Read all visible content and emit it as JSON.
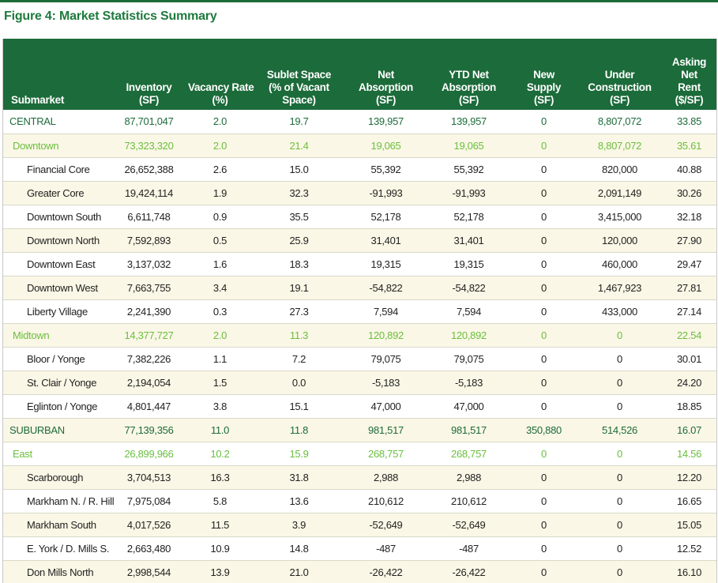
{
  "figure": {
    "title": "Figure 4: Market Statistics Summary"
  },
  "colors": {
    "header_bg": "#1c6b3a",
    "title": "#1e7a3e",
    "region_text": "#1c6b3a",
    "submarket_text": "#6abf3e",
    "shaded_row": "#fbf7e6"
  },
  "table": {
    "columns": [
      {
        "lines": [
          "Submarket"
        ]
      },
      {
        "lines": [
          "Inventory",
          "(SF)"
        ]
      },
      {
        "lines": [
          "Vacancy Rate",
          "(%)"
        ]
      },
      {
        "lines": [
          "Sublet Space",
          "(% of Vacant",
          "Space)"
        ]
      },
      {
        "lines": [
          "Net",
          "Absorption",
          "(SF)"
        ]
      },
      {
        "lines": [
          "YTD Net",
          "Absorption",
          "(SF)"
        ]
      },
      {
        "lines": [
          "New",
          "Supply",
          "(SF)"
        ]
      },
      {
        "lines": [
          "Under",
          "Construction",
          "(SF)"
        ]
      },
      {
        "lines": [
          "Asking",
          "Net",
          "Rent",
          "($/SF)"
        ]
      }
    ],
    "rows": [
      {
        "level": 0,
        "cells": [
          "CENTRAL",
          "87,701,047",
          "2.0",
          "19.7",
          "139,957",
          "139,957",
          "0",
          "8,807,072",
          "33.85"
        ]
      },
      {
        "level": 1,
        "cells": [
          "Downtown",
          "73,323,320",
          "2.0",
          "21.4",
          "19,065",
          "19,065",
          "0",
          "8,807,072",
          "35.61"
        ]
      },
      {
        "level": 2,
        "cells": [
          "Financial Core",
          "26,652,388",
          "2.6",
          "15.0",
          "55,392",
          "55,392",
          "0",
          "820,000",
          "40.88"
        ]
      },
      {
        "level": 2,
        "cells": [
          "Greater Core",
          "19,424,114",
          "1.9",
          "32.3",
          "-91,993",
          "-91,993",
          "0",
          "2,091,149",
          "30.26"
        ]
      },
      {
        "level": 2,
        "cells": [
          "Downtown South",
          "6,611,748",
          "0.9",
          "35.5",
          "52,178",
          "52,178",
          "0",
          "3,415,000",
          "32.18"
        ]
      },
      {
        "level": 2,
        "cells": [
          "Downtown North",
          "7,592,893",
          "0.5",
          "25.9",
          "31,401",
          "31,401",
          "0",
          "120,000",
          "27.90"
        ]
      },
      {
        "level": 2,
        "cells": [
          "Downtown East",
          "3,137,032",
          "1.6",
          "18.3",
          "19,315",
          "19,315",
          "0",
          "460,000",
          "29.47"
        ]
      },
      {
        "level": 2,
        "cells": [
          "Downtown West",
          "7,663,755",
          "3.4",
          "19.1",
          "-54,822",
          "-54,822",
          "0",
          "1,467,923",
          "27.81"
        ]
      },
      {
        "level": 2,
        "cells": [
          "Liberty Village",
          "2,241,390",
          "0.3",
          "27.3",
          "7,594",
          "7,594",
          "0",
          "433,000",
          "27.14"
        ]
      },
      {
        "level": 1,
        "cells": [
          "Midtown",
          "14,377,727",
          "2.0",
          "11.3",
          "120,892",
          "120,892",
          "0",
          "0",
          "22.54"
        ]
      },
      {
        "level": 2,
        "cells": [
          "Bloor / Yonge",
          "7,382,226",
          "1.1",
          "7.2",
          "79,075",
          "79,075",
          "0",
          "0",
          "30.01"
        ]
      },
      {
        "level": 2,
        "cells": [
          "St. Clair / Yonge",
          "2,194,054",
          "1.5",
          "0.0",
          "-5,183",
          "-5,183",
          "0",
          "0",
          "24.20"
        ]
      },
      {
        "level": 2,
        "cells": [
          "Eglinton / Yonge",
          "4,801,447",
          "3.8",
          "15.1",
          "47,000",
          "47,000",
          "0",
          "0",
          "18.85"
        ]
      },
      {
        "level": 0,
        "cells": [
          "SUBURBAN",
          "77,139,356",
          "11.0",
          "11.8",
          "981,517",
          "981,517",
          "350,880",
          "514,526",
          "16.07"
        ]
      },
      {
        "level": 1,
        "cells": [
          "East",
          "26,899,966",
          "10.2",
          "15.9",
          "268,757",
          "268,757",
          "0",
          "0",
          "14.56"
        ]
      },
      {
        "level": 2,
        "cells": [
          "Scarborough",
          "3,704,513",
          "16.3",
          "31.8",
          "2,988",
          "2,988",
          "0",
          "0",
          "12.20"
        ]
      },
      {
        "level": 2,
        "cells": [
          "Markham N. / R. Hill",
          "7,975,084",
          "5.8",
          "13.6",
          "210,612",
          "210,612",
          "0",
          "0",
          "16.65"
        ]
      },
      {
        "level": 2,
        "cells": [
          "Markham South",
          "4,017,526",
          "11.5",
          "3.9",
          "-52,649",
          "-52,649",
          "0",
          "0",
          "15.05"
        ]
      },
      {
        "level": 2,
        "cells": [
          "E. York / D. Mills S.",
          "2,663,480",
          "10.9",
          "14.8",
          "-487",
          "-487",
          "0",
          "0",
          "12.52"
        ]
      },
      {
        "level": 2,
        "cells": [
          "Don Mills North",
          "2,998,544",
          "13.9",
          "21.0",
          "-26,422",
          "-26,422",
          "0",
          "0",
          "16.10"
        ]
      }
    ]
  }
}
